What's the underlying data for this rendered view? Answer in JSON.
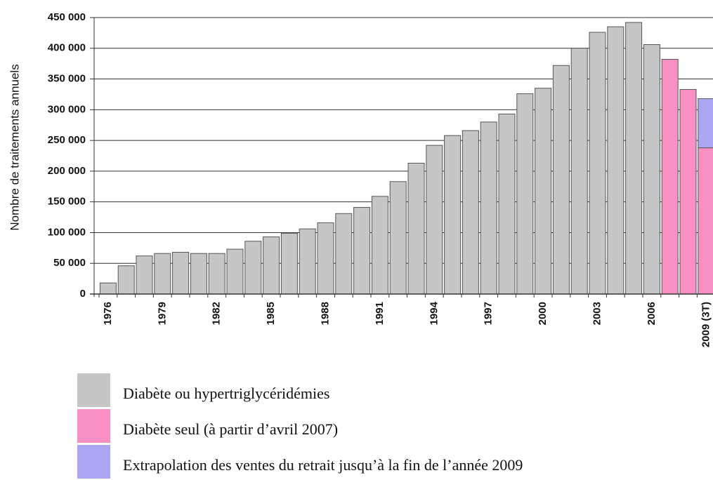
{
  "chart_data": {
    "type": "stacked_bar",
    "y_label": "Nombre de traitements annuels",
    "categories": [
      "1976",
      null,
      null,
      "1979",
      null,
      null,
      "1982",
      null,
      null,
      "1985",
      null,
      null,
      "1988",
      null,
      null,
      "1991",
      null,
      null,
      "1994",
      null,
      null,
      "1997",
      null,
      null,
      "2000",
      null,
      null,
      "2003",
      null,
      null,
      "2006",
      null,
      null,
      "2009 (3T)"
    ],
    "series": [
      {
        "name": "Diabète ou hypertriglycéridémies",
        "color": "#c6c6c6",
        "values": [
          18000,
          46000,
          62000,
          66000,
          68000,
          66000,
          66000,
          73000,
          86000,
          93000,
          99000,
          106000,
          116000,
          131000,
          141000,
          159000,
          183000,
          213000,
          242000,
          258000,
          266000,
          280000,
          293000,
          326000,
          335000,
          372000,
          400000,
          426000,
          435000,
          442000,
          406000,
          null,
          null,
          null
        ]
      },
      {
        "name": "Diabète seul (à partir d’avril 2007)",
        "color": "#f890c4",
        "values": [
          null,
          null,
          null,
          null,
          null,
          null,
          null,
          null,
          null,
          null,
          null,
          null,
          null,
          null,
          null,
          null,
          null,
          null,
          null,
          null,
          null,
          null,
          null,
          null,
          null,
          null,
          null,
          null,
          null,
          null,
          null,
          382000,
          333000,
          238000
        ]
      },
      {
        "name": "Extrapolation des ventes du retrait jusqu’à la fin de l’année 2009",
        "color": "#aaa6f2",
        "values": [
          null,
          null,
          null,
          null,
          null,
          null,
          null,
          null,
          null,
          null,
          null,
          null,
          null,
          null,
          null,
          null,
          null,
          null,
          null,
          null,
          null,
          null,
          null,
          null,
          null,
          null,
          null,
          null,
          null,
          null,
          null,
          null,
          null,
          80000
        ]
      }
    ],
    "ylim": [
      0,
      450000
    ],
    "yticks": [
      0,
      {
        "value": 50000,
        "label": "50 000"
      },
      {
        "value": 100000,
        "label": "100 000"
      },
      {
        "value": 150000,
        "label": "150 000"
      },
      {
        "value": 200000,
        "label": "200 000"
      },
      {
        "value": 250000,
        "label": "250 000"
      },
      {
        "value": 300000,
        "label": "300 000"
      },
      {
        "value": 350000,
        "label": "350 000"
      },
      {
        "value": 400000,
        "label": "400 000"
      },
      {
        "value": 450000,
        "label": "450 000"
      }
    ],
    "grid": true
  }
}
